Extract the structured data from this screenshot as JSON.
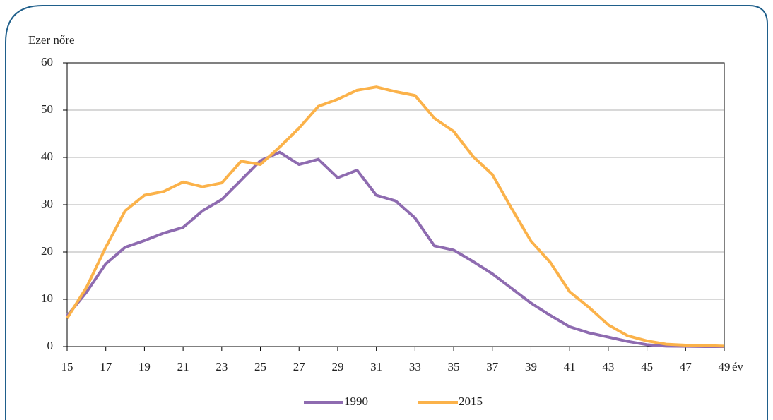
{
  "chart_data": {
    "type": "line",
    "y_label": "Ezer nőre",
    "x_label": "év",
    "x": [
      15,
      16,
      17,
      18,
      19,
      20,
      21,
      22,
      23,
      24,
      25,
      26,
      27,
      28,
      29,
      30,
      31,
      32,
      33,
      34,
      35,
      36,
      37,
      38,
      39,
      40,
      41,
      42,
      43,
      44,
      45,
      46,
      47,
      48,
      49
    ],
    "series": [
      {
        "name": "1990",
        "color": "#8e6bb0",
        "values": [
          6.5,
          11.5,
          17.5,
          21,
          22.4,
          24,
          25.2,
          28.7,
          31.1,
          35.2,
          39.3,
          41.1,
          38.5,
          39.6,
          35.7,
          37.3,
          32,
          30.8,
          27.2,
          21.3,
          20.4,
          18,
          15.4,
          12.3,
          9.2,
          6.6,
          4.2,
          2.9,
          2,
          1.1,
          0.4,
          0.1,
          0.05,
          0,
          0
        ]
      },
      {
        "name": "2015",
        "color": "#fbb24a",
        "values": [
          6,
          12.5,
          21,
          28.7,
          32,
          32.8,
          34.8,
          33.8,
          34.6,
          39.2,
          38.5,
          42.2,
          46.2,
          50.8,
          52.3,
          54.2,
          54.9,
          53.9,
          53.1,
          48.3,
          45.5,
          40.2,
          36.4,
          29.2,
          22.3,
          17.8,
          11.6,
          8.3,
          4.6,
          2.3,
          1.2,
          0.5,
          0.3,
          0.2,
          0.1
        ]
      }
    ],
    "xlim": [
      15,
      49
    ],
    "ylim": [
      0,
      60
    ],
    "xticks": [
      15,
      17,
      19,
      21,
      23,
      25,
      27,
      29,
      31,
      33,
      35,
      37,
      39,
      41,
      43,
      45,
      47,
      49
    ],
    "yticks": [
      0,
      10,
      20,
      30,
      40,
      50,
      60
    ],
    "grid": true,
    "legend": "bottom"
  }
}
